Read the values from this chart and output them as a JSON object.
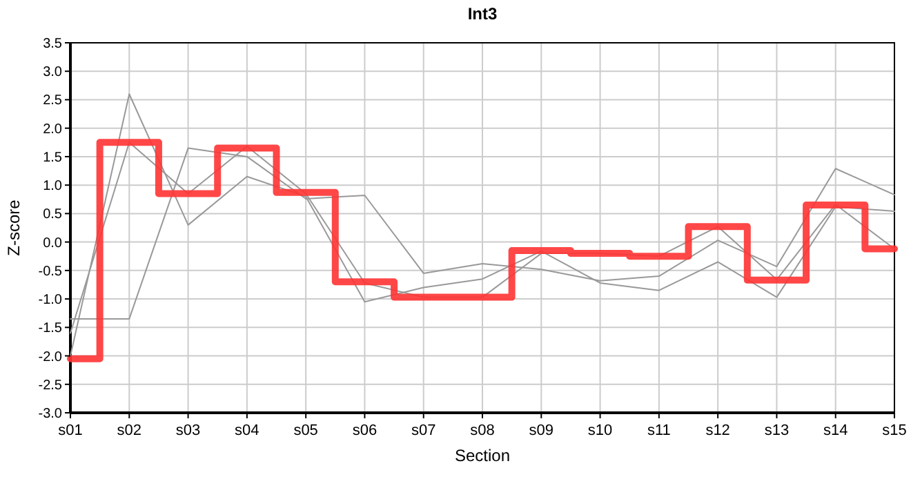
{
  "chart_data": {
    "type": "line",
    "title": "Int3",
    "xlabel": "Section",
    "ylabel": "Z-score",
    "categories": [
      "s01",
      "s02",
      "s03",
      "s04",
      "s05",
      "s06",
      "s07",
      "s08",
      "s09",
      "s10",
      "s11",
      "s12",
      "s13",
      "s14",
      "s15"
    ],
    "series": [
      {
        "color": "#999999",
        "values": [
          -2.0,
          2.6,
          0.3,
          1.15,
          0.8,
          -1.05,
          -0.8,
          -0.65,
          -0.16,
          -0.72,
          -0.85,
          -0.35,
          -0.97,
          0.62,
          0.54
        ]
      },
      {
        "color": "#999999",
        "values": [
          -1.35,
          -1.35,
          1.65,
          1.5,
          0.76,
          0.82,
          -0.55,
          -0.38,
          -0.48,
          -0.68,
          -0.6,
          0.03,
          -0.43,
          1.29,
          0.83
        ]
      },
      {
        "color": "#999999",
        "values": [
          -1.6,
          1.75,
          0.85,
          1.68,
          0.85,
          -0.72,
          -0.97,
          -0.97,
          -0.2,
          -0.2,
          -0.25,
          0.27,
          -0.66,
          0.66,
          -0.12
        ]
      },
      {
        "type": "step",
        "color": "#ff3333",
        "values": [
          -2.05,
          1.75,
          0.85,
          1.65,
          0.87,
          -0.7,
          -0.97,
          -0.97,
          -0.15,
          -0.2,
          -0.25,
          0.27,
          -0.67,
          0.65,
          -0.12
        ]
      }
    ],
    "ylim": [
      -3,
      3.5
    ],
    "yticks": [
      {
        "value": -3,
        "label": "-3.0"
      },
      -2.5,
      {
        "value": -2,
        "label": "-2.0"
      },
      -1.5,
      {
        "value": -1,
        "label": "-1.0"
      },
      -0.5,
      {
        "value": 0,
        "label": "0.0"
      },
      0.5,
      {
        "value": 1,
        "label": "1.0"
      },
      1.5,
      {
        "value": 2,
        "label": "2.0"
      },
      2.5,
      {
        "value": 3,
        "label": "3.0"
      },
      3.5
    ],
    "grid": true,
    "marker": "none",
    "line_style": "solid"
  }
}
